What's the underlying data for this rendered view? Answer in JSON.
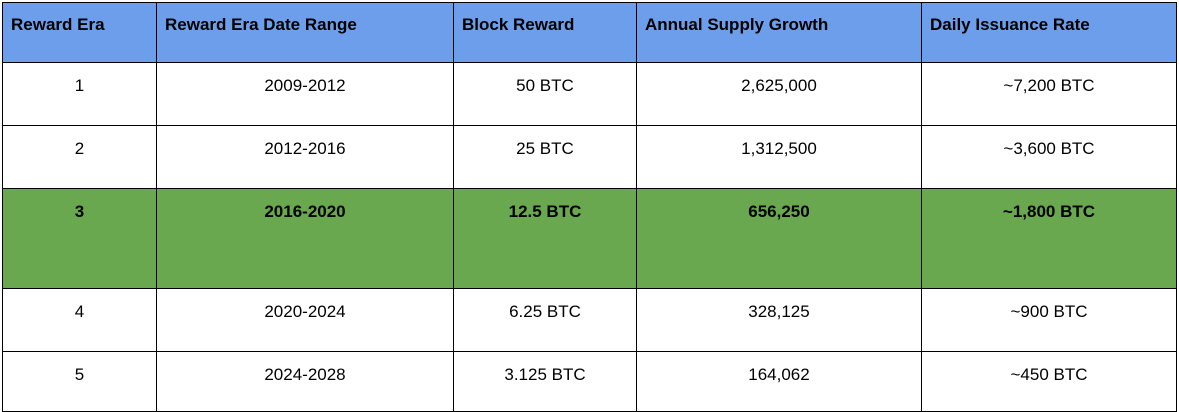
{
  "table": {
    "headers": [
      "Reward Era",
      "Reward Era Date Range",
      "Block Reward",
      "Annual Supply Growth",
      "Daily Issuance Rate"
    ],
    "rows": [
      [
        "1",
        "2009-2012",
        "50 BTC",
        "2,625,000",
        "~7,200 BTC"
      ],
      [
        "2",
        "2012-2016",
        "25 BTC",
        "1,312,500",
        "~3,600 BTC"
      ],
      [
        "3",
        "2016-2020",
        "12.5 BTC",
        "656,250",
        "~1,800 BTC"
      ],
      [
        "4",
        "2020-2024",
        "6.25 BTC",
        "328,125",
        "~900 BTC"
      ],
      [
        "5",
        "2024-2028",
        "3.125 BTC",
        "164,062",
        "~450 BTC"
      ]
    ],
    "highlighted_row": 3
  },
  "colors": {
    "header_bg": "#6d9eeb",
    "highlight_bg": "#6aa84f",
    "border": "#000000"
  }
}
